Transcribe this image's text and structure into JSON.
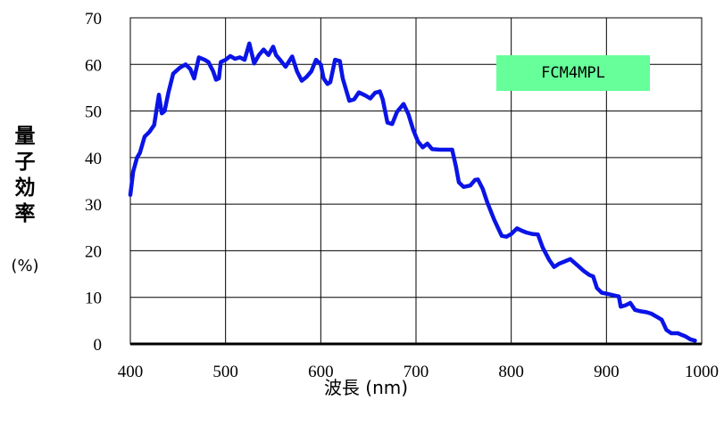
{
  "chart_data": {
    "type": "line",
    "xlabel": "波長 (nm)",
    "ylabel": "量子効率",
    "yunit": "(%)",
    "xlim": [
      400,
      1000
    ],
    "ylim": [
      0,
      70
    ],
    "xticks": [
      400,
      500,
      600,
      700,
      800,
      900,
      1000
    ],
    "yticks": [
      0,
      10,
      20,
      30,
      40,
      50,
      60,
      70
    ],
    "grid": true,
    "legend": {
      "label": "FCM4MPL",
      "placement": "top-right",
      "background": "#66ff99"
    },
    "series": [
      {
        "name": "FCM4MPL",
        "color": "#0a14e6",
        "points": [
          [
            400,
            32
          ],
          [
            403,
            37
          ],
          [
            407,
            40
          ],
          [
            410,
            41
          ],
          [
            415,
            44.5
          ],
          [
            420,
            45.5
          ],
          [
            425,
            47
          ],
          [
            430,
            53.5
          ],
          [
            433,
            49.5
          ],
          [
            436,
            50
          ],
          [
            440,
            54
          ],
          [
            445,
            58
          ],
          [
            452,
            59.3
          ],
          [
            458,
            60
          ],
          [
            463,
            59
          ],
          [
            467,
            57
          ],
          [
            472,
            61.5
          ],
          [
            478,
            61
          ],
          [
            482,
            60.5
          ],
          [
            487,
            58.5
          ],
          [
            490,
            56.7
          ],
          [
            493,
            57
          ],
          [
            495,
            60.5
          ],
          [
            500,
            61
          ],
          [
            505,
            61.8
          ],
          [
            510,
            61.2
          ],
          [
            515,
            61.5
          ],
          [
            520,
            61
          ],
          [
            525,
            64.5
          ],
          [
            530,
            60.2
          ],
          [
            535,
            62
          ],
          [
            540,
            63.2
          ],
          [
            545,
            62
          ],
          [
            550,
            63.8
          ],
          [
            553,
            62
          ],
          [
            558,
            60.8
          ],
          [
            563,
            59.5
          ],
          [
            570,
            61.7
          ],
          [
            575,
            58.5
          ],
          [
            580,
            56.5
          ],
          [
            585,
            57.3
          ],
          [
            590,
            58.5
          ],
          [
            595,
            61
          ],
          [
            600,
            60
          ],
          [
            603,
            57
          ],
          [
            607,
            55.8
          ],
          [
            610,
            56.2
          ],
          [
            615,
            61
          ],
          [
            620,
            60.7
          ],
          [
            623,
            57
          ],
          [
            630,
            52.2
          ],
          [
            635,
            52.5
          ],
          [
            640,
            54
          ],
          [
            647,
            53.3
          ],
          [
            652,
            52.7
          ],
          [
            657,
            53.9
          ],
          [
            662,
            54.2
          ],
          [
            665,
            52.5
          ],
          [
            670,
            47.5
          ],
          [
            675,
            47.2
          ],
          [
            680,
            49.8
          ],
          [
            687,
            51.5
          ],
          [
            692,
            49.3
          ],
          [
            697,
            46
          ],
          [
            702,
            43.5
          ],
          [
            707,
            42.2
          ],
          [
            712,
            43
          ],
          [
            717,
            41.8
          ],
          [
            725,
            41.7
          ],
          [
            733,
            41.7
          ],
          [
            738,
            41.7
          ],
          [
            742,
            38
          ],
          [
            745,
            34.7
          ],
          [
            750,
            33.7
          ],
          [
            757,
            34
          ],
          [
            762,
            35.2
          ],
          [
            765,
            35.3
          ],
          [
            770,
            33.3
          ],
          [
            775,
            30.3
          ],
          [
            782,
            26.7
          ],
          [
            790,
            23.2
          ],
          [
            795,
            23
          ],
          [
            800,
            23.6
          ],
          [
            806,
            24.8
          ],
          [
            811,
            24.3
          ],
          [
            816,
            23.9
          ],
          [
            822,
            23.6
          ],
          [
            828,
            23.5
          ],
          [
            833,
            20.7
          ],
          [
            840,
            18
          ],
          [
            845,
            16.5
          ],
          [
            850,
            17.2
          ],
          [
            856,
            17.7
          ],
          [
            862,
            18.2
          ],
          [
            870,
            16.8
          ],
          [
            876,
            15.7
          ],
          [
            882,
            14.8
          ],
          [
            886,
            14.5
          ],
          [
            890,
            12
          ],
          [
            895,
            11
          ],
          [
            902,
            10.7
          ],
          [
            910,
            10.3
          ],
          [
            913,
            10.2
          ],
          [
            915,
            8
          ],
          [
            920,
            8.3
          ],
          [
            925,
            8.8
          ],
          [
            930,
            7.3
          ],
          [
            936,
            7
          ],
          [
            942,
            6.8
          ],
          [
            947,
            6.5
          ],
          [
            953,
            5.8
          ],
          [
            958,
            5.2
          ],
          [
            963,
            3
          ],
          [
            968,
            2.3
          ],
          [
            975,
            2.3
          ],
          [
            983,
            1.6
          ],
          [
            988,
            1
          ],
          [
            993,
            0.7
          ]
        ]
      }
    ]
  }
}
